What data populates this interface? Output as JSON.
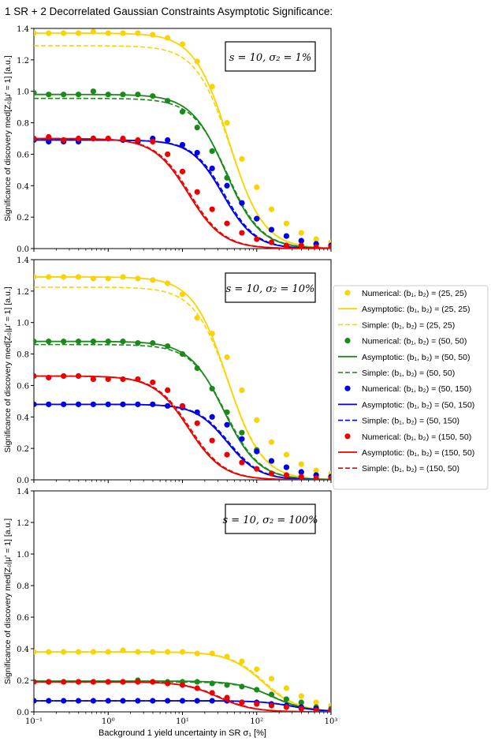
{
  "figure_title": "1 SR + 2 Decorrelated Gaussian Constraints Asymptotic Significance:",
  "colors": {
    "yellow": "#f9d400",
    "green": "#1a8a1a",
    "blue": "#0000ee",
    "red": "#ee0000"
  },
  "chart_data": [
    {
      "type": "line",
      "panel": "top",
      "annotation": "s = 10, σ₂ = 1%",
      "ylabel": "Significance of discovery med[Z₀|μ′ = 1] [a.u.]",
      "xlabel": "",
      "xscale": "log",
      "xlim": [
        0.1,
        1000
      ],
      "ylim": [
        0,
        1.4
      ],
      "yticks": [
        "0.0",
        "0.2",
        "0.4",
        "0.6",
        "0.8",
        "1.0",
        "1.2",
        "1.4"
      ],
      "x_points": [
        0.1,
        0.158,
        0.251,
        0.398,
        0.631,
        1.0,
        1.58,
        2.51,
        3.98,
        6.31,
        10,
        15.8,
        25.1,
        39.8,
        63.1,
        100,
        158,
        251,
        398,
        631,
        1000
      ],
      "series": [
        {
          "name": "(25,25)",
          "color": "yellow",
          "num": [
            1.37,
            1.37,
            1.37,
            1.37,
            1.38,
            1.37,
            1.37,
            1.37,
            1.36,
            1.34,
            1.3,
            1.19,
            1.03,
            0.8,
            0.57,
            0.39,
            0.25,
            0.16,
            0.1,
            0.06,
            0.04
          ],
          "asym_plateau": 1.37,
          "asym_mid": 42,
          "asym_width": 0.55,
          "simple_plateau": 1.29
        },
        {
          "name": "(50,50)",
          "color": "green",
          "num": [
            0.99,
            0.98,
            0.98,
            0.98,
            1.0,
            0.98,
            0.98,
            0.98,
            0.97,
            0.94,
            0.87,
            0.77,
            0.62,
            0.45,
            0.29,
            0.19,
            0.12,
            0.08,
            0.05,
            0.03,
            0.02
          ],
          "asym_plateau": 0.98,
          "asym_mid": 38,
          "asym_width": 0.55,
          "simple_plateau": 0.955
        },
        {
          "name": "(50,150)",
          "color": "blue",
          "num": [
            0.69,
            0.68,
            0.68,
            0.68,
            0.7,
            0.7,
            0.69,
            0.68,
            0.7,
            0.69,
            0.66,
            0.61,
            0.51,
            0.4,
            0.29,
            0.19,
            0.12,
            0.08,
            0.05,
            0.03,
            0.02
          ],
          "asym_plateau": 0.69,
          "asym_mid": 35,
          "asym_width": 0.6,
          "simple_plateau": 0.69
        },
        {
          "name": "(150,50)",
          "color": "red",
          "num": [
            0.7,
            0.71,
            0.69,
            0.7,
            0.7,
            0.7,
            0.7,
            0.69,
            0.68,
            0.6,
            0.49,
            0.36,
            0.25,
            0.16,
            0.1,
            0.06,
            0.04,
            0.02,
            0.02,
            0.01,
            0.01
          ],
          "asym_plateau": 0.7,
          "asym_mid": 12,
          "asym_width": 0.55,
          "simple_plateau": 0.7
        }
      ]
    },
    {
      "type": "line",
      "panel": "middle",
      "annotation": "s = 10, σ₂ = 10%",
      "ylabel": "Significance of discovery med[Z₀|μ′ = 1] [a.u.]",
      "xlabel": "",
      "xscale": "log",
      "xlim": [
        0.1,
        1000
      ],
      "ylim": [
        0,
        1.4
      ],
      "yticks": [
        "0.0",
        "0.2",
        "0.4",
        "0.6",
        "0.8",
        "1.0",
        "1.2",
        "1.4"
      ],
      "x_points": [
        0.1,
        0.158,
        0.251,
        0.398,
        0.631,
        1.0,
        1.58,
        2.51,
        3.98,
        6.31,
        10,
        15.8,
        25.1,
        39.8,
        63.1,
        100,
        158,
        251,
        398,
        631,
        1000
      ],
      "series": [
        {
          "name": "(25,25)",
          "color": "yellow",
          "num": [
            1.29,
            1.29,
            1.29,
            1.29,
            1.28,
            1.28,
            1.29,
            1.28,
            1.27,
            1.25,
            1.18,
            1.03,
            0.93,
            0.78,
            0.57,
            0.38,
            0.24,
            0.16,
            0.1,
            0.06,
            0.04
          ],
          "asym_plateau": 1.29,
          "asym_mid": 40,
          "asym_width": 0.55,
          "simple_plateau": 1.225
        },
        {
          "name": "(50,50)",
          "color": "green",
          "num": [
            0.88,
            0.88,
            0.88,
            0.88,
            0.88,
            0.88,
            0.88,
            0.87,
            0.87,
            0.85,
            0.8,
            0.71,
            0.58,
            0.43,
            0.3,
            0.19,
            0.12,
            0.08,
            0.05,
            0.03,
            0.02
          ],
          "asym_plateau": 0.88,
          "asym_mid": 36,
          "asym_width": 0.55,
          "simple_plateau": 0.86
        },
        {
          "name": "(50,150)",
          "color": "blue",
          "num": [
            0.48,
            0.48,
            0.48,
            0.48,
            0.48,
            0.48,
            0.48,
            0.48,
            0.48,
            0.47,
            0.46,
            0.43,
            0.4,
            0.35,
            0.26,
            0.18,
            0.12,
            0.08,
            0.05,
            0.03,
            0.02
          ],
          "asym_plateau": 0.48,
          "asym_mid": 40,
          "asym_width": 0.6,
          "simple_plateau": 0.48
        },
        {
          "name": "(150,50)",
          "color": "red",
          "num": [
            0.66,
            0.65,
            0.66,
            0.66,
            0.64,
            0.64,
            0.64,
            0.64,
            0.62,
            0.57,
            0.47,
            0.36,
            0.25,
            0.16,
            0.11,
            0.07,
            0.04,
            0.03,
            0.02,
            0.01,
            0.01
          ],
          "asym_plateau": 0.66,
          "asym_mid": 12,
          "asym_width": 0.55,
          "simple_plateau": 0.66
        }
      ]
    },
    {
      "type": "line",
      "panel": "bottom",
      "annotation": "s = 10, σ₂ = 100%",
      "ylabel": "Significance of discovery med[Z₀|μ′ = 1] [a.u.]",
      "xlabel": "Background 1 yield uncertainty in SR σ₁ [%]",
      "xscale": "log",
      "xlim": [
        0.1,
        1000
      ],
      "ylim": [
        0,
        1.4
      ],
      "yticks": [
        "0.0",
        "0.2",
        "0.4",
        "0.6",
        "0.8",
        "1.0",
        "1.2",
        "1.4"
      ],
      "xticks": [
        "10⁻¹",
        "10⁰",
        "10¹",
        "10²",
        "10³"
      ],
      "x_points": [
        0.1,
        0.158,
        0.251,
        0.398,
        0.631,
        1.0,
        1.58,
        2.51,
        3.98,
        6.31,
        10,
        15.8,
        25.1,
        39.8,
        63.1,
        100,
        158,
        251,
        398,
        631,
        1000
      ],
      "series": [
        {
          "name": "(25,25)",
          "color": "yellow",
          "num": [
            0.38,
            0.38,
            0.38,
            0.38,
            0.38,
            0.38,
            0.39,
            0.38,
            0.38,
            0.38,
            0.38,
            0.37,
            0.37,
            0.35,
            0.32,
            0.27,
            0.21,
            0.15,
            0.1,
            0.06,
            0.04
          ],
          "asym_plateau": 0.38,
          "asym_mid": 120,
          "asym_width": 0.55,
          "simple_plateau": 0.38
        },
        {
          "name": "(50,50)",
          "color": "green",
          "num": [
            0.19,
            0.19,
            0.19,
            0.19,
            0.19,
            0.19,
            0.19,
            0.2,
            0.19,
            0.19,
            0.19,
            0.19,
            0.18,
            0.17,
            0.16,
            0.14,
            0.11,
            0.08,
            0.06,
            0.03,
            0.02
          ],
          "asym_plateau": 0.195,
          "asym_mid": 160,
          "asym_width": 0.55,
          "simple_plateau": 0.19
        },
        {
          "name": "(50,150)",
          "color": "blue",
          "num": [
            0.07,
            0.07,
            0.07,
            0.07,
            0.07,
            0.07,
            0.07,
            0.07,
            0.07,
            0.07,
            0.07,
            0.07,
            0.07,
            0.07,
            0.06,
            0.06,
            0.05,
            0.04,
            0.03,
            0.02,
            0.01
          ],
          "asym_plateau": 0.07,
          "asym_mid": 300,
          "asym_width": 0.6,
          "simple_plateau": 0.07
        },
        {
          "name": "(150,50)",
          "color": "red",
          "num": [
            0.19,
            0.19,
            0.19,
            0.19,
            0.19,
            0.19,
            0.19,
            0.19,
            0.19,
            0.18,
            0.17,
            0.15,
            0.12,
            0.09,
            0.06,
            0.05,
            0.04,
            0.03,
            0.02,
            0.01,
            0.01
          ],
          "asym_plateau": 0.19,
          "asym_mid": 30,
          "asym_width": 0.55,
          "simple_plateau": 0.19
        }
      ]
    }
  ],
  "legend": [
    {
      "kind": "num",
      "color": "yellow",
      "label": "Numerical: (b₁, b₂) = (25, 25)"
    },
    {
      "kind": "asym",
      "color": "yellow",
      "label": "Asymptotic: (b₁, b₂) = (25, 25)"
    },
    {
      "kind": "simple",
      "color": "yellow",
      "label": "Simple: (b₁, b₂) = (25, 25)"
    },
    {
      "kind": "num",
      "color": "green",
      "label": "Numerical: (b₁, b₂) = (50, 50)"
    },
    {
      "kind": "asym",
      "color": "green",
      "label": "Asymptotic: (b₁, b₂) = (50, 50)"
    },
    {
      "kind": "simple",
      "color": "green",
      "label": "Simple: (b₁, b₂) = (50, 50)"
    },
    {
      "kind": "num",
      "color": "blue",
      "label": "Numerical: (b₁, b₂) = (50, 150)"
    },
    {
      "kind": "asym",
      "color": "blue",
      "label": "Asymptotic: (b₁, b₂) = (50, 150)"
    },
    {
      "kind": "simple",
      "color": "blue",
      "label": "Simple: (b₁, b₂) = (50, 150)"
    },
    {
      "kind": "num",
      "color": "red",
      "label": "Numerical: (b₁, b₂) = (150, 50)"
    },
    {
      "kind": "asym",
      "color": "red",
      "label": "Asymptotic: (b₁, b₂) = (150, 50)"
    },
    {
      "kind": "simple",
      "color": "red",
      "label": "Simple: (b₁, b₂) = (150, 50)"
    }
  ]
}
